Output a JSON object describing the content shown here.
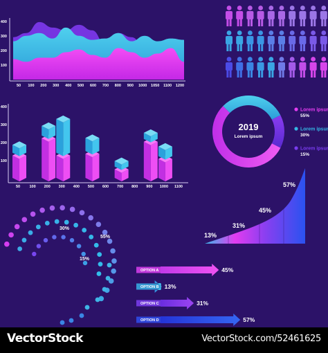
{
  "colors": {
    "background": "#2c1268",
    "pink": "#e63df2",
    "cyan": "#34b8e4",
    "purple": "#6a35e8",
    "blue": "#2a44ee",
    "footer": "#000000"
  },
  "chart_data": [
    {
      "type": "area",
      "x": [
        50,
        100,
        200,
        300,
        400,
        500,
        600,
        700,
        800,
        900,
        1000,
        1050,
        1100,
        1200
      ],
      "tick_labels": [
        "50",
        "100",
        "200",
        "300",
        "400",
        "500",
        "600",
        "700",
        "800",
        "900",
        "1000",
        "1050",
        "1100",
        "1200"
      ],
      "ytick_labels": [
        "100",
        "200",
        "300",
        "400"
      ],
      "ylim": [
        0,
        450
      ],
      "series": [
        {
          "values": [
            310,
            340,
            420,
            380,
            360,
            400,
            360,
            260,
            340,
            310,
            240,
            240,
            250,
            200
          ]
        },
        {
          "values": [
            280,
            320,
            340,
            300,
            380,
            320,
            290,
            300,
            340,
            280,
            320,
            280,
            300,
            290
          ]
        },
        {
          "values": [
            150,
            130,
            160,
            160,
            200,
            220,
            180,
            160,
            230,
            200,
            160,
            190,
            230,
            130
          ]
        }
      ]
    },
    {
      "type": "bar",
      "categories": [
        "50",
        "100",
        "200",
        "300",
        "400",
        "500",
        "600",
        "700",
        "800",
        "900",
        "1000",
        "1100"
      ],
      "ytick_labels": [
        "100",
        "200",
        "300",
        "400"
      ],
      "ylim": [
        0,
        450
      ],
      "bars": [
        {
          "category": "50",
          "base": 150,
          "top": 220
        },
        {
          "category": "200",
          "base": 250,
          "top": 330
        },
        {
          "category": "300",
          "base": 150,
          "top": 370
        },
        {
          "category": "500",
          "base": 160,
          "top": 260
        },
        {
          "category": "700",
          "base": 70,
          "top": 100
        },
        {
          "category": "900",
          "base": 230,
          "top": 290
        },
        {
          "category": "1000",
          "base": 130,
          "top": 210
        }
      ]
    },
    {
      "type": "pie",
      "center_label": "2019",
      "center_sublabel": "Lorem ipsum",
      "slices": [
        {
          "name": "Lorem ipsum",
          "value": 55,
          "label": "55%"
        },
        {
          "name": "Lorem ipsum",
          "value": 30,
          "label": "30%"
        },
        {
          "name": "Lorem ipsum",
          "value": 15,
          "label": "15%"
        }
      ]
    },
    {
      "type": "area",
      "categories": [
        "13%",
        "31%",
        "45%",
        "57%"
      ],
      "values": [
        13,
        31,
        45,
        57
      ]
    },
    {
      "type": "bar",
      "categories": [
        "OPTION A",
        "OPTION B",
        "OPTION C",
        "OPTION D"
      ],
      "values": [
        45,
        13,
        31,
        57
      ],
      "labels": [
        "45%",
        "13%",
        "31%",
        "57%"
      ]
    },
    {
      "type": "pie",
      "slices": [
        {
          "value": 55,
          "label": "55%"
        },
        {
          "value": 30,
          "label": "30%"
        },
        {
          "value": 15,
          "label": "15%"
        }
      ]
    }
  ],
  "people": {
    "rows": 3,
    "per_row": 10,
    "row_colors": [
      [
        "#c44de8",
        "#c44de8",
        "#b85ae6",
        "#b85ae6",
        "#a968e6",
        "#a968e6",
        "#9b76e6",
        "#9b76e6",
        "#9b76e6",
        "#9b76e6"
      ],
      [
        "#3aa6e4",
        "#3aa6e4",
        "#3a95e4",
        "#3a95e4",
        "#5a7ee6",
        "#5a7ee6",
        "#6a6ae8",
        "#6a6ae8",
        "#7a5ae8",
        "#7a5ae8"
      ],
      [
        "#4b4be6",
        "#3f6fe6",
        "#3a86e4",
        "#3a9ae4",
        "#3aa6e4",
        "#6f7ae6",
        "#a35ae8",
        "#c14de8",
        "#d645ea",
        "#d645ea"
      ]
    ]
  },
  "footer": {
    "brand": "VectorStock",
    "id_text": "VectorStock.com/52461625"
  }
}
